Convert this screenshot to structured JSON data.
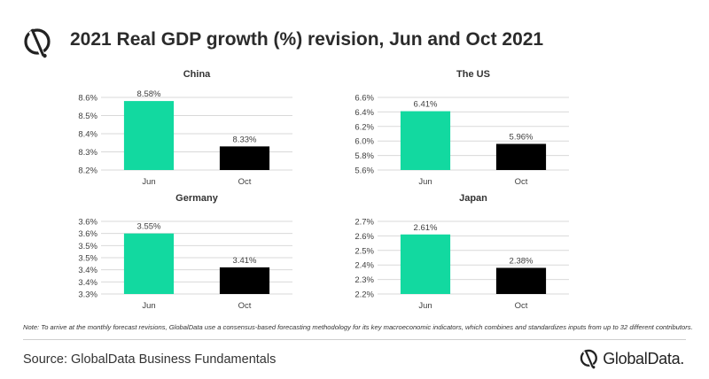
{
  "title": "2021 Real GDP growth (%) revision, Jun and Oct 2021",
  "colors": {
    "jun": "#12d9a0",
    "oct": "#000000",
    "grid": "#d9d9d9",
    "text": "#404040"
  },
  "chart_data": [
    {
      "type": "bar",
      "title": "China",
      "categories": [
        "Jun",
        "Oct"
      ],
      "values": [
        8.58,
        8.33
      ],
      "value_labels": [
        "8.58%",
        "8.33%"
      ],
      "yticks": [
        8.2,
        8.3,
        8.4,
        8.5,
        8.6
      ],
      "ytick_labels": [
        "8.2%",
        "8.3%",
        "8.4%",
        "8.5%",
        "8.6%"
      ],
      "ylim": [
        8.2,
        8.6
      ],
      "grid": true
    },
    {
      "type": "bar",
      "title": "The US",
      "categories": [
        "Jun",
        "Oct"
      ],
      "values": [
        6.41,
        5.96
      ],
      "value_labels": [
        "6.41%",
        "5.96%"
      ],
      "yticks": [
        5.6,
        5.8,
        6.0,
        6.2,
        6.4,
        6.6
      ],
      "ytick_labels": [
        "5.6%",
        "5.8%",
        "6.0%",
        "6.2%",
        "6.4%",
        "6.6%"
      ],
      "ylim": [
        5.6,
        6.6
      ],
      "grid": true
    },
    {
      "type": "bar",
      "title": "Germany",
      "categories": [
        "Jun",
        "Oct"
      ],
      "values": [
        3.55,
        3.41
      ],
      "value_labels": [
        "3.55%",
        "3.41%"
      ],
      "yticks": [
        3.3,
        3.35,
        3.4,
        3.45,
        3.5,
        3.55,
        3.6
      ],
      "ytick_labels": [
        "3.3%",
        "3.4%",
        "3.4%",
        "3.5%",
        "3.5%",
        "3.6%",
        "3.6%"
      ],
      "ylim": [
        3.3,
        3.6
      ],
      "grid": true
    },
    {
      "type": "bar",
      "title": "Japan",
      "categories": [
        "Jun",
        "Oct"
      ],
      "values": [
        2.61,
        2.38
      ],
      "value_labels": [
        "2.61%",
        "2.38%"
      ],
      "yticks": [
        2.2,
        2.3,
        2.4,
        2.5,
        2.6,
        2.7
      ],
      "ytick_labels": [
        "2.2%",
        "2.3%",
        "2.4%",
        "2.5%",
        "2.6%",
        "2.7%"
      ],
      "ylim": [
        2.2,
        2.7
      ],
      "grid": true
    }
  ],
  "footnote": "Note: To arrive at the monthly forecast revisions, GlobalData use a consensus-based forecasting methodology for its key macroeconomic indicators, which combines and standardizes inputs from up to 32 different contributors.",
  "source": "Source: GlobalData Business Fundamentals",
  "brand": {
    "name": "GlobalData.",
    "logo_icon": "globaldata-logo-icon"
  }
}
